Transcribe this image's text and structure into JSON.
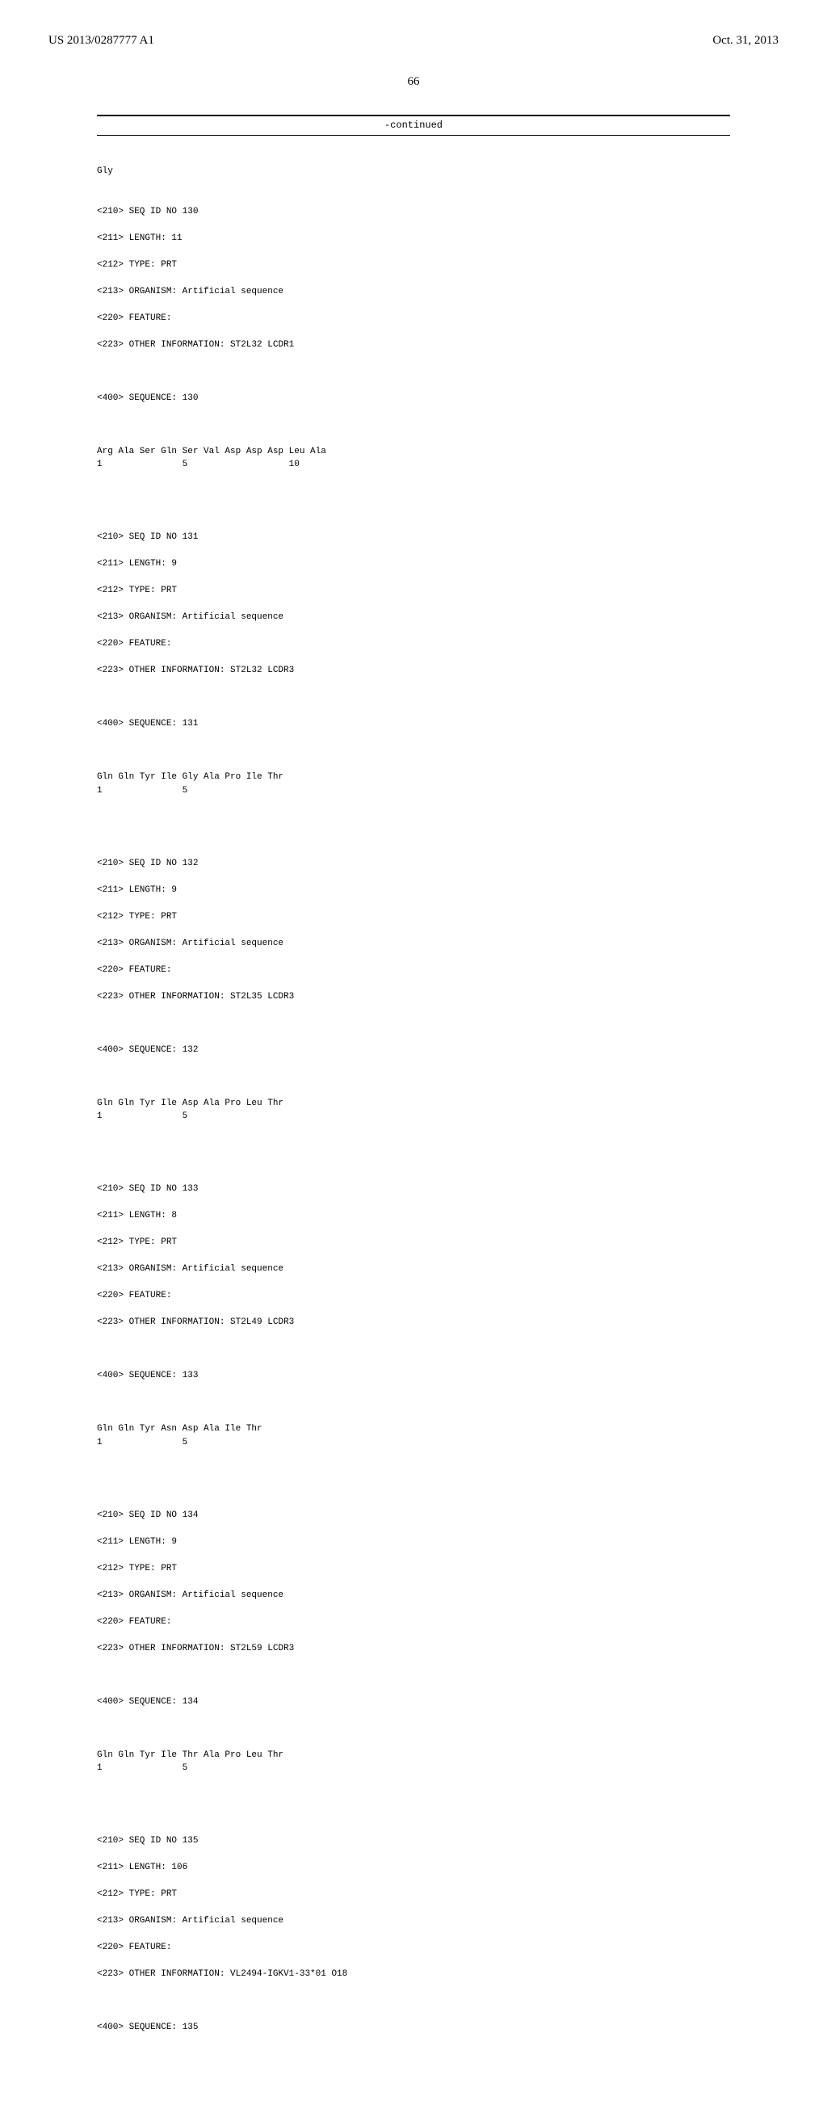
{
  "header": {
    "pub_number": "US 2013/0287777 A1",
    "pub_date": "Oct. 31, 2013"
  },
  "page_num": "66",
  "continued_label": "-continued",
  "prelude": "Gly",
  "sequences": [
    {
      "id_line": "<210> SEQ ID NO 130",
      "length_line": "<211> LENGTH: 11",
      "type_line": "<212> TYPE: PRT",
      "organism_line": "<213> ORGANISM: Artificial sequence",
      "feature_line": "<220> FEATURE:",
      "other_info_line": "<223> OTHER INFORMATION: ST2L32 LCDR1",
      "seq_header": "<400> SEQUENCE: 130",
      "sequence_text": "Arg Ala Ser Gln Ser Val Asp Asp Asp Leu Ala\n1               5                   10"
    },
    {
      "id_line": "<210> SEQ ID NO 131",
      "length_line": "<211> LENGTH: 9",
      "type_line": "<212> TYPE: PRT",
      "organism_line": "<213> ORGANISM: Artificial sequence",
      "feature_line": "<220> FEATURE:",
      "other_info_line": "<223> OTHER INFORMATION: ST2L32 LCDR3",
      "seq_header": "<400> SEQUENCE: 131",
      "sequence_text": "Gln Gln Tyr Ile Gly Ala Pro Ile Thr\n1               5"
    },
    {
      "id_line": "<210> SEQ ID NO 132",
      "length_line": "<211> LENGTH: 9",
      "type_line": "<212> TYPE: PRT",
      "organism_line": "<213> ORGANISM: Artificial sequence",
      "feature_line": "<220> FEATURE:",
      "other_info_line": "<223> OTHER INFORMATION: ST2L35 LCDR3",
      "seq_header": "<400> SEQUENCE: 132",
      "sequence_text": "Gln Gln Tyr Ile Asp Ala Pro Leu Thr\n1               5"
    },
    {
      "id_line": "<210> SEQ ID NO 133",
      "length_line": "<211> LENGTH: 8",
      "type_line": "<212> TYPE: PRT",
      "organism_line": "<213> ORGANISM: Artificial sequence",
      "feature_line": "<220> FEATURE:",
      "other_info_line": "<223> OTHER INFORMATION: ST2L49 LCDR3",
      "seq_header": "<400> SEQUENCE: 133",
      "sequence_text": "Gln Gln Tyr Asn Asp Ala Ile Thr\n1               5"
    },
    {
      "id_line": "<210> SEQ ID NO 134",
      "length_line": "<211> LENGTH: 9",
      "type_line": "<212> TYPE: PRT",
      "organism_line": "<213> ORGANISM: Artificial sequence",
      "feature_line": "<220> FEATURE:",
      "other_info_line": "<223> OTHER INFORMATION: ST2L59 LCDR3",
      "seq_header": "<400> SEQUENCE: 134",
      "sequence_text": "Gln Gln Tyr Ile Thr Ala Pro Leu Thr\n1               5"
    },
    {
      "id_line": "<210> SEQ ID NO 135",
      "length_line": "<211> LENGTH: 106",
      "type_line": "<212> TYPE: PRT",
      "organism_line": "<213> ORGANISM: Artificial sequence",
      "feature_line": "<220> FEATURE:",
      "other_info_line": "<223> OTHER INFORMATION: VL2494-IGKV1-33*01 O18",
      "seq_header": "<400> SEQUENCE: 135",
      "sequence_text": ""
    }
  ]
}
